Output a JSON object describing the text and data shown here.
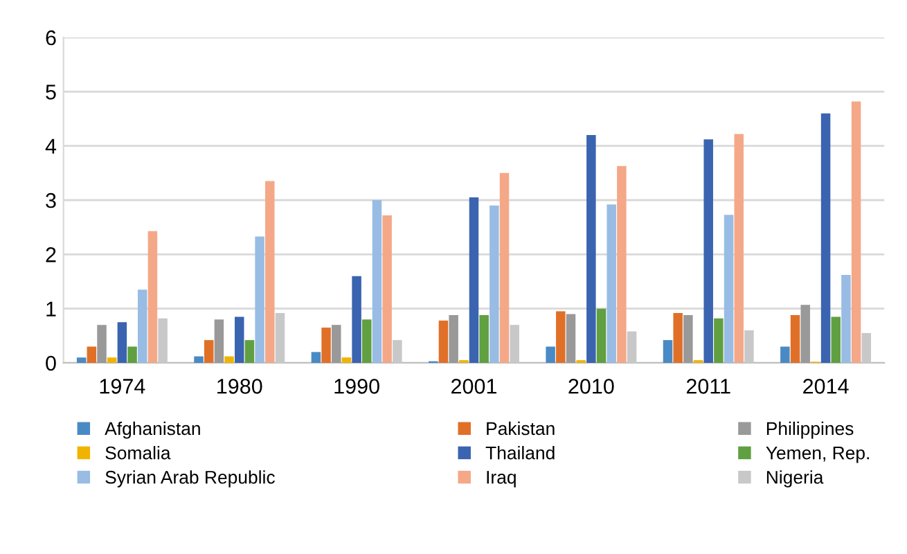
{
  "chart_data": {
    "type": "bar",
    "categories": [
      "1974",
      "1980",
      "1990",
      "2001",
      "2010",
      "2011",
      "2014"
    ],
    "ylim": [
      0,
      6
    ],
    "yticks": [
      0,
      1,
      2,
      3,
      4,
      5,
      6
    ],
    "grid": "y",
    "legend": "bottom",
    "series": [
      {
        "name": "Afghanistan",
        "color": "#4a8ac4",
        "values": [
          0.1,
          0.12,
          0.2,
          0.03,
          0.3,
          0.42,
          0.3
        ]
      },
      {
        "name": "Pakistan",
        "color": "#e07028",
        "values": [
          0.3,
          0.42,
          0.65,
          0.78,
          0.95,
          0.92,
          0.88
        ]
      },
      {
        "name": "Philippines",
        "color": "#999999",
        "values": [
          0.7,
          0.8,
          0.7,
          0.88,
          0.9,
          0.88,
          1.07
        ]
      },
      {
        "name": "Somalia",
        "color": "#f0b400",
        "values": [
          0.1,
          0.12,
          0.1,
          0.05,
          0.05,
          0.05,
          0.02
        ]
      },
      {
        "name": "Thailand",
        "color": "#3a64b0",
        "values": [
          0.75,
          0.85,
          1.6,
          3.05,
          4.2,
          4.12,
          4.6
        ]
      },
      {
        "name": "Yemen, Rep.",
        "color": "#60a040",
        "values": [
          0.3,
          0.42,
          0.8,
          0.88,
          1.0,
          0.82,
          0.85
        ]
      },
      {
        "name": "Syrian Arab Republic",
        "color": "#98bce4",
        "values": [
          1.35,
          2.33,
          3.0,
          2.9,
          2.92,
          2.73,
          1.62
        ]
      },
      {
        "name": "Iraq",
        "color": "#f4a888",
        "values": [
          2.43,
          3.35,
          2.72,
          3.5,
          3.63,
          4.22,
          4.82
        ]
      },
      {
        "name": "Nigeria",
        "color": "#c8c8c8",
        "values": [
          0.82,
          0.92,
          0.42,
          0.7,
          0.58,
          0.6,
          0.55
        ]
      }
    ]
  }
}
